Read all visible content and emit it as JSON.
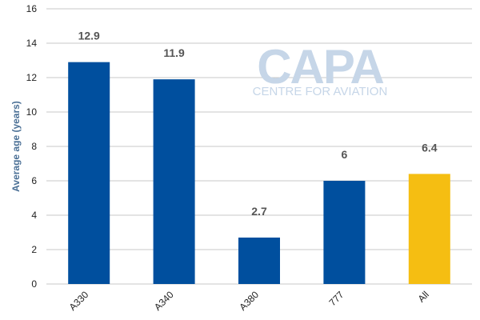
{
  "chart_data": {
    "type": "bar",
    "categories": [
      "A330",
      "A340",
      "A380",
      "777",
      "All"
    ],
    "values": [
      12.9,
      11.9,
      2.7,
      6,
      6.4
    ],
    "data_labels": [
      "12.9",
      "11.9",
      "2.7",
      "6",
      "6.4"
    ],
    "ylabel": "Average age (years)",
    "xlabel": "",
    "ylim": [
      0,
      16
    ],
    "yticks": [
      0,
      2,
      4,
      6,
      8,
      10,
      12,
      14,
      16
    ],
    "grid": true,
    "colors": {
      "default_bar": "#004f9e",
      "highlight_bar": "#f5be12",
      "grid": "#c8c8c8",
      "data_label": "#555555"
    },
    "highlight_category": "All"
  },
  "watermark": {
    "logo_text": "CAPA",
    "subtitle": "CENTRE FOR AVIATION"
  }
}
